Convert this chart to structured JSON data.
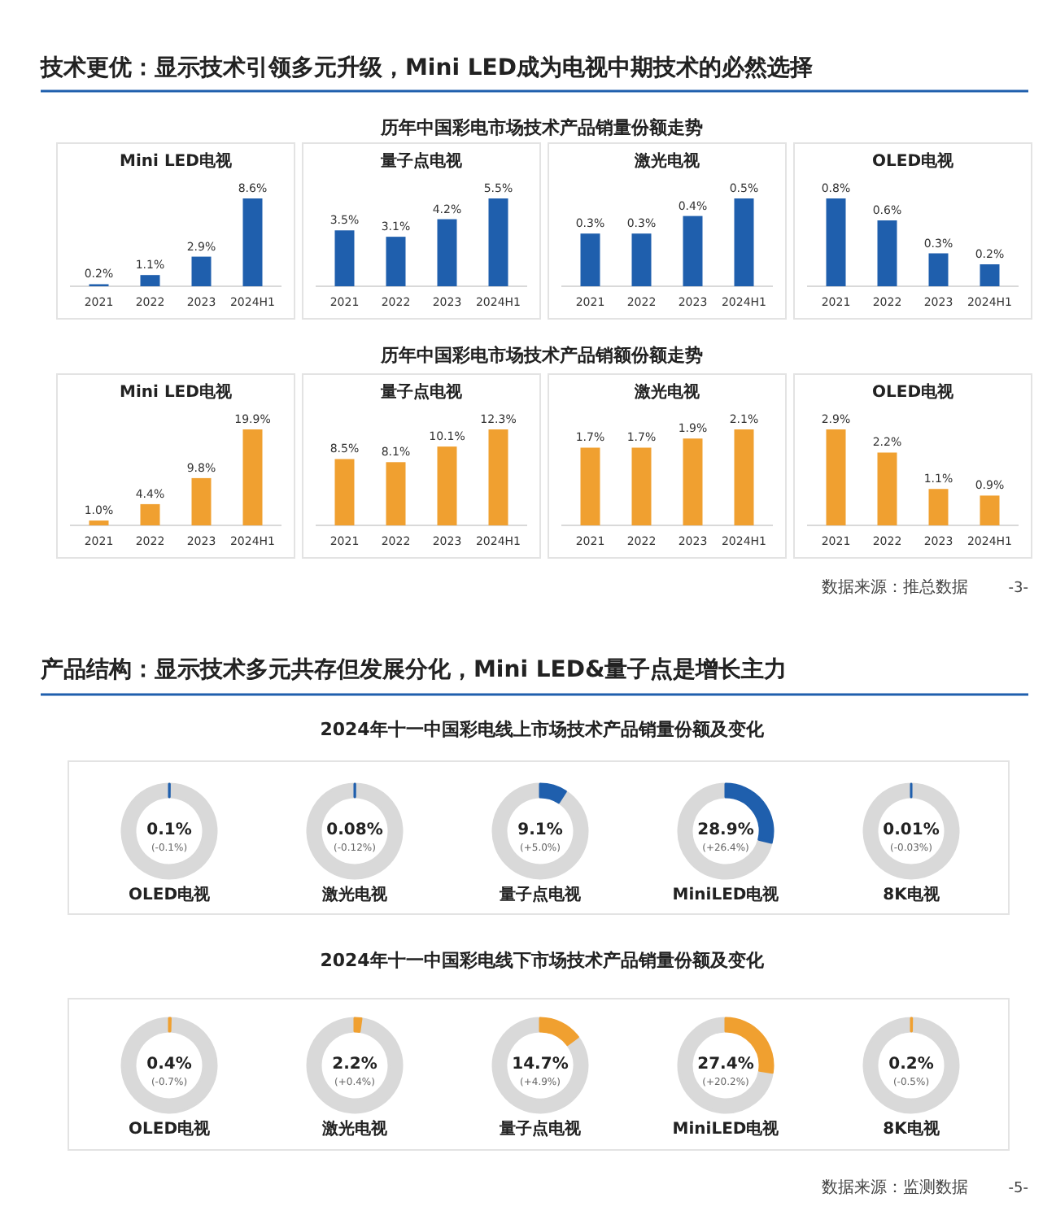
{
  "chart_data": [
    {
      "type": "bar",
      "title": "Mini LED电视",
      "categories": [
        "2021",
        "2022",
        "2023",
        "2024H1"
      ],
      "values": [
        0.2,
        1.1,
        2.9,
        8.6
      ],
      "value_labels": [
        "0.2%",
        "1.1%",
        "2.9%",
        "8.6%"
      ],
      "color": "#1f5fad",
      "annotations": [
        "技术更优：显示技术引领多元升级，Mini LED成为电视中期技术的必然选择",
        "历年中国彩电市场技术产品销量份额走势"
      ]
    },
    {
      "type": "bar",
      "title": "量子点电视",
      "categories": [
        "2021",
        "2022",
        "2023",
        "2024H1"
      ],
      "values": [
        3.5,
        3.1,
        4.2,
        5.5
      ],
      "value_labels": [
        "3.5%",
        "3.1%",
        "4.2%",
        "5.5%"
      ],
      "color": "#1f5fad"
    },
    {
      "type": "bar",
      "title": "激光电视",
      "categories": [
        "2021",
        "2022",
        "2023",
        "2024H1"
      ],
      "values": [
        0.3,
        0.3,
        0.4,
        0.5
      ],
      "value_labels": [
        "0.3%",
        "0.3%",
        "0.4%",
        "0.5%"
      ],
      "color": "#1f5fad"
    },
    {
      "type": "bar",
      "title": "OLED电视",
      "categories": [
        "2021",
        "2022",
        "2023",
        "2024H1"
      ],
      "values": [
        0.8,
        0.6,
        0.3,
        0.2
      ],
      "value_labels": [
        "0.8%",
        "0.6%",
        "0.3%",
        "0.2%"
      ],
      "color": "#1f5fad"
    },
    {
      "type": "bar",
      "title": "Mini LED电视",
      "categories": [
        "2021",
        "2022",
        "2023",
        "2024H1"
      ],
      "values": [
        1.0,
        4.4,
        9.8,
        19.9
      ],
      "value_labels": [
        "1.0%",
        "4.4%",
        "9.8%",
        "19.9%"
      ],
      "color": "#f0a030",
      "annotations": [
        "历年中国彩电市场技术产品销额份额走势",
        "数据来源：推总数据",
        "-3-"
      ]
    },
    {
      "type": "bar",
      "title": "量子点电视",
      "categories": [
        "2021",
        "2022",
        "2023",
        "2024H1"
      ],
      "values": [
        8.5,
        8.1,
        10.1,
        12.3
      ],
      "value_labels": [
        "8.5%",
        "8.1%",
        "10.1%",
        "12.3%"
      ],
      "color": "#f0a030"
    },
    {
      "type": "bar",
      "title": "激光电视",
      "categories": [
        "2021",
        "2022",
        "2023",
        "2024H1"
      ],
      "values": [
        1.7,
        1.7,
        1.9,
        2.1
      ],
      "value_labels": [
        "1.7%",
        "1.7%",
        "1.9%",
        "2.1%"
      ],
      "color": "#f0a030"
    },
    {
      "type": "bar",
      "title": "OLED电视",
      "categories": [
        "2021",
        "2022",
        "2023",
        "2024H1"
      ],
      "values": [
        2.9,
        2.2,
        1.1,
        0.9
      ],
      "value_labels": [
        "2.9%",
        "2.2%",
        "1.1%",
        "0.9%"
      ],
      "color": "#f0a030"
    },
    {
      "type": "donut",
      "title": "OLED电视",
      "categories": [
        null,
        null
      ],
      "values": [
        0.1,
        99.9
      ],
      "colors": [
        "#1f5fad",
        "#d9d9d9"
      ],
      "value_labels": [
        "0.1%",
        null
      ],
      "annotations": [
        "(-0.1%)",
        "产品结构：显示技术多元共存但发展分化，Mini LED&量子点是增长主力",
        "2024年十一中国彩电线上市场技术产品销量份额及变化"
      ]
    },
    {
      "type": "donut",
      "title": "激光电视",
      "categories": [
        null,
        null
      ],
      "values": [
        0.08,
        99.92
      ],
      "colors": [
        "#1f5fad",
        "#d9d9d9"
      ],
      "value_labels": [
        "0.08%",
        null
      ],
      "annotations": [
        "(-0.12%)"
      ]
    },
    {
      "type": "donut",
      "title": "量子点电视",
      "categories": [
        null,
        null
      ],
      "values": [
        9.1,
        90.9
      ],
      "colors": [
        "#1f5fad",
        "#d9d9d9"
      ],
      "value_labels": [
        "9.1%",
        null
      ],
      "annotations": [
        "(+5.0%)"
      ]
    },
    {
      "type": "donut",
      "title": "MiniLED电视",
      "categories": [
        null,
        null
      ],
      "values": [
        28.9,
        71.1
      ],
      "colors": [
        "#1f5fad",
        "#d9d9d9"
      ],
      "value_labels": [
        "28.9%",
        null
      ],
      "annotations": [
        "(+26.4%)"
      ]
    },
    {
      "type": "donut",
      "title": "8K电视",
      "categories": [
        null,
        null
      ],
      "values": [
        0.01,
        99.99
      ],
      "colors": [
        "#1f5fad",
        "#d9d9d9"
      ],
      "value_labels": [
        "0.01%",
        null
      ],
      "annotations": [
        "(-0.03%)"
      ]
    },
    {
      "type": "donut",
      "title": "OLED电视",
      "categories": [
        null,
        null
      ],
      "values": [
        0.4,
        99.6
      ],
      "colors": [
        "#f0a030",
        "#d9d9d9"
      ],
      "value_labels": [
        "0.4%",
        null
      ],
      "annotations": [
        "(-0.7%)",
        "2024年十一中国彩电线下市场技术产品销量份额及变化",
        "数据来源：监测数据",
        "-5-"
      ]
    },
    {
      "type": "donut",
      "title": "激光电视",
      "categories": [
        null,
        null
      ],
      "values": [
        2.2,
        97.8
      ],
      "colors": [
        "#f0a030",
        "#d9d9d9"
      ],
      "value_labels": [
        "2.2%",
        null
      ],
      "annotations": [
        "(+0.4%)"
      ]
    },
    {
      "type": "donut",
      "title": "量子点电视",
      "categories": [
        null,
        null
      ],
      "values": [
        14.7,
        85.3
      ],
      "colors": [
        "#f0a030",
        "#d9d9d9"
      ],
      "value_labels": [
        "14.7%",
        null
      ],
      "annotations": [
        "(+4.9%)"
      ]
    },
    {
      "type": "donut",
      "title": "MiniLED电视",
      "categories": [
        null,
        null
      ],
      "values": [
        27.4,
        72.6
      ],
      "colors": [
        "#f0a030",
        "#d9d9d9"
      ],
      "value_labels": [
        "27.4%",
        null
      ],
      "annotations": [
        "(+20.2%)"
      ]
    },
    {
      "type": "donut",
      "title": "8K电视",
      "categories": [
        null,
        null
      ],
      "values": [
        0.2,
        99.8
      ],
      "colors": [
        "#f0a030",
        "#d9d9d9"
      ],
      "value_labels": [
        "0.2%",
        null
      ],
      "annotations": [
        "(-0.5%)"
      ]
    }
  ]
}
